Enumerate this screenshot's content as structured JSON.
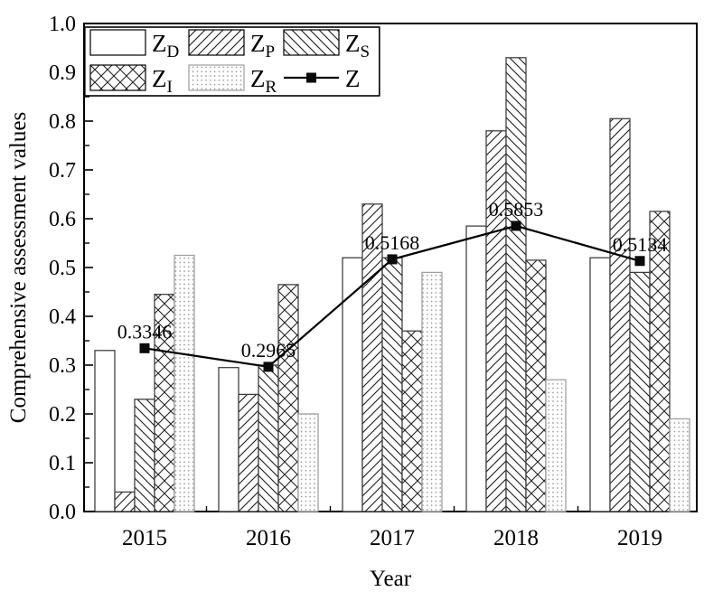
{
  "chart_data": {
    "type": "bar+line",
    "title": "",
    "xlabel": "Year",
    "ylabel": "Comprehensive assessment values",
    "categories": [
      "2015",
      "2016",
      "2017",
      "2018",
      "2019"
    ],
    "bar_series": [
      {
        "name": "Z_D",
        "label_base": "Z",
        "label_sub": "D",
        "pattern": "plain",
        "values": [
          0.33,
          0.295,
          0.52,
          0.585,
          0.52
        ]
      },
      {
        "name": "Z_P",
        "label_base": "Z",
        "label_sub": "P",
        "pattern": "diag-up",
        "values": [
          0.04,
          0.24,
          0.63,
          0.78,
          0.805
        ]
      },
      {
        "name": "Z_S",
        "label_base": "Z",
        "label_sub": "S",
        "pattern": "diag-down",
        "values": [
          0.23,
          0.3,
          0.52,
          0.93,
          0.49
        ]
      },
      {
        "name": "Z_I",
        "label_base": "Z",
        "label_sub": "I",
        "pattern": "cross",
        "values": [
          0.445,
          0.465,
          0.37,
          0.515,
          0.615
        ]
      },
      {
        "name": "Z_R",
        "label_base": "Z",
        "label_sub": "R",
        "pattern": "dots",
        "values": [
          0.525,
          0.2,
          0.49,
          0.27,
          0.19
        ]
      }
    ],
    "line_series": {
      "name": "Z",
      "label_base": "Z",
      "label_sub": "",
      "marker": "filled-square",
      "values": [
        0.3346,
        0.2965,
        0.5168,
        0.5853,
        0.5134
      ],
      "point_labels": [
        "0.3346",
        "0.2965",
        "0.5168",
        "0.5853",
        "0.5134"
      ]
    },
    "ylim": [
      0.0,
      1.0
    ],
    "ytick_step": 0.1,
    "ytick_minor_step": 0.05,
    "ytick_labels": [
      "0.0",
      "0.1",
      "0.2",
      "0.3",
      "0.4",
      "0.5",
      "0.6",
      "0.7",
      "0.8",
      "0.9",
      "1.0"
    ],
    "grid": false,
    "legend_position": "top-left-inside",
    "colors": {
      "foreground": "#000000",
      "background": "#ffffff",
      "bar_border": "#3a3a3a",
      "hatch": "#1a1a1a",
      "dots": "#8c8c8c",
      "dots_border": "#9e9e9e",
      "line": "#000000",
      "marker": "#0a0a0a"
    }
  }
}
